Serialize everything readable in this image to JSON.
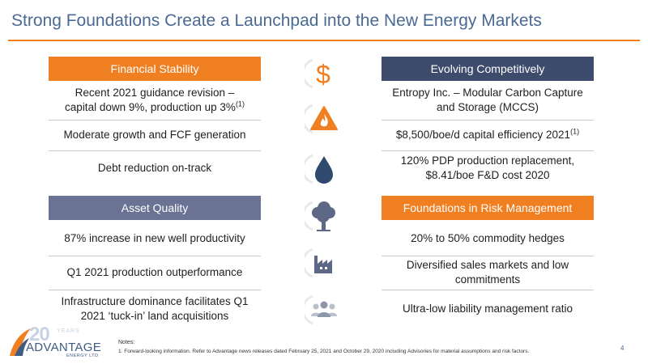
{
  "title": "Strong Foundations Create a Launchpad into the New Energy Markets",
  "colors": {
    "accent": "#f07f22",
    "title": "#4a6a94",
    "navy": "#3d4c6c",
    "slate": "#6a7393",
    "icon": "#2f4a6e"
  },
  "left": {
    "financial": {
      "header": "Financial Stability",
      "items": [
        {
          "line1": "Recent 2021 guidance revision –",
          "line2": "capital down 9%, production up 3%",
          "sup": "(1)"
        },
        {
          "text": "Moderate growth and FCF generation"
        },
        {
          "text": "Debt reduction on-track"
        }
      ]
    },
    "asset": {
      "header": "Asset Quality",
      "items": [
        {
          "text": "87% increase in new well productivity"
        },
        {
          "text": "Q1 2021 production outperformance"
        },
        {
          "line1": "Infrastructure dominance facilitates Q1",
          "line2": "2021 ‘tuck-in’ land acquisitions"
        }
      ]
    }
  },
  "right": {
    "evolving": {
      "header": "Evolving Competitively",
      "items": [
        {
          "line1": "Entropy Inc. – Modular Carbon Capture",
          "line2": "and Storage (MCCS)"
        },
        {
          "text": "$8,500/boe/d capital efficiency 2021",
          "sup": "(1)"
        },
        {
          "line1": "120% PDP production replacement,",
          "line2": "$8.41/boe F&D cost 2020"
        }
      ]
    },
    "risk": {
      "header": "Foundations in Risk Management",
      "items": [
        {
          "text": "20% to 50% commodity hedges"
        },
        {
          "line1": "Diversified sales markets and low",
          "line2": "commitments"
        },
        {
          "text": "Ultra-low liability management ratio"
        }
      ]
    }
  },
  "icons": [
    "dollar-icon",
    "flame-warning-icon",
    "water-drop-icon",
    "tree-icon",
    "factory-icon",
    "people-group-icon"
  ],
  "logo": {
    "number": "20",
    "years": "YEARS",
    "name": "ADVANTAGE",
    "sub": "ENERGY LTD"
  },
  "notes": {
    "heading": "Notes:",
    "text": "1. Forward-looking information. Refer to Advantage news releases dated February 25, 2021 and October 29, 2020 including Advisories for material assumptions and risk factors."
  },
  "page_number": "4"
}
